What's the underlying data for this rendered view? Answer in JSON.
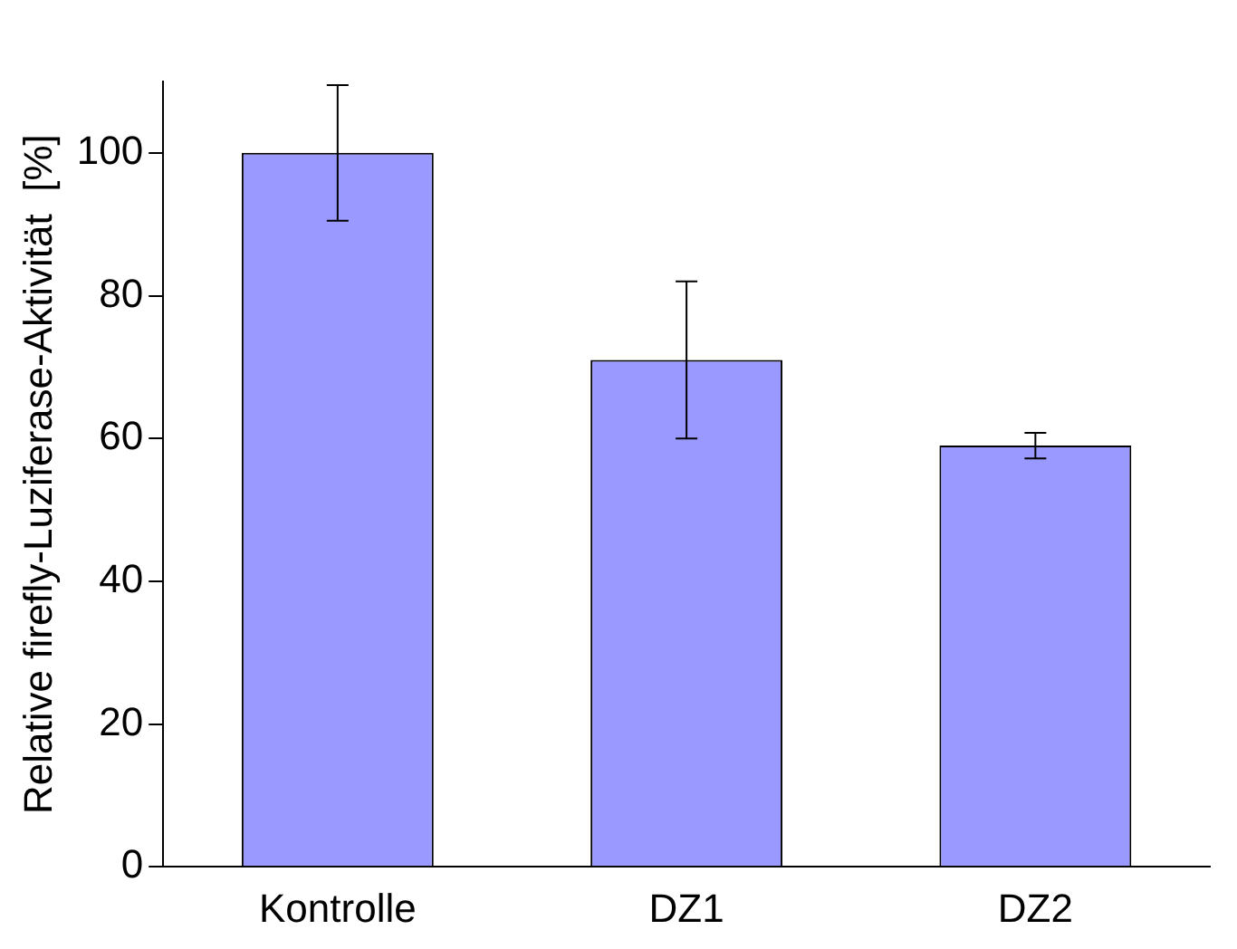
{
  "chart_data": {
    "type": "bar",
    "ylabel": "Relative firefly-Luziferase-Aktivität  [%]",
    "categories": [
      "Kontrolle",
      "DZ1",
      "DZ2"
    ],
    "values": [
      100,
      71,
      59
    ],
    "color": "#9999ff",
    "errors": [
      9.5,
      11,
      1.8
    ],
    "ylim": [
      0,
      110
    ],
    "yticks": [
      0,
      20,
      40,
      60,
      80,
      100
    ],
    "grid": false,
    "legend": false
  }
}
